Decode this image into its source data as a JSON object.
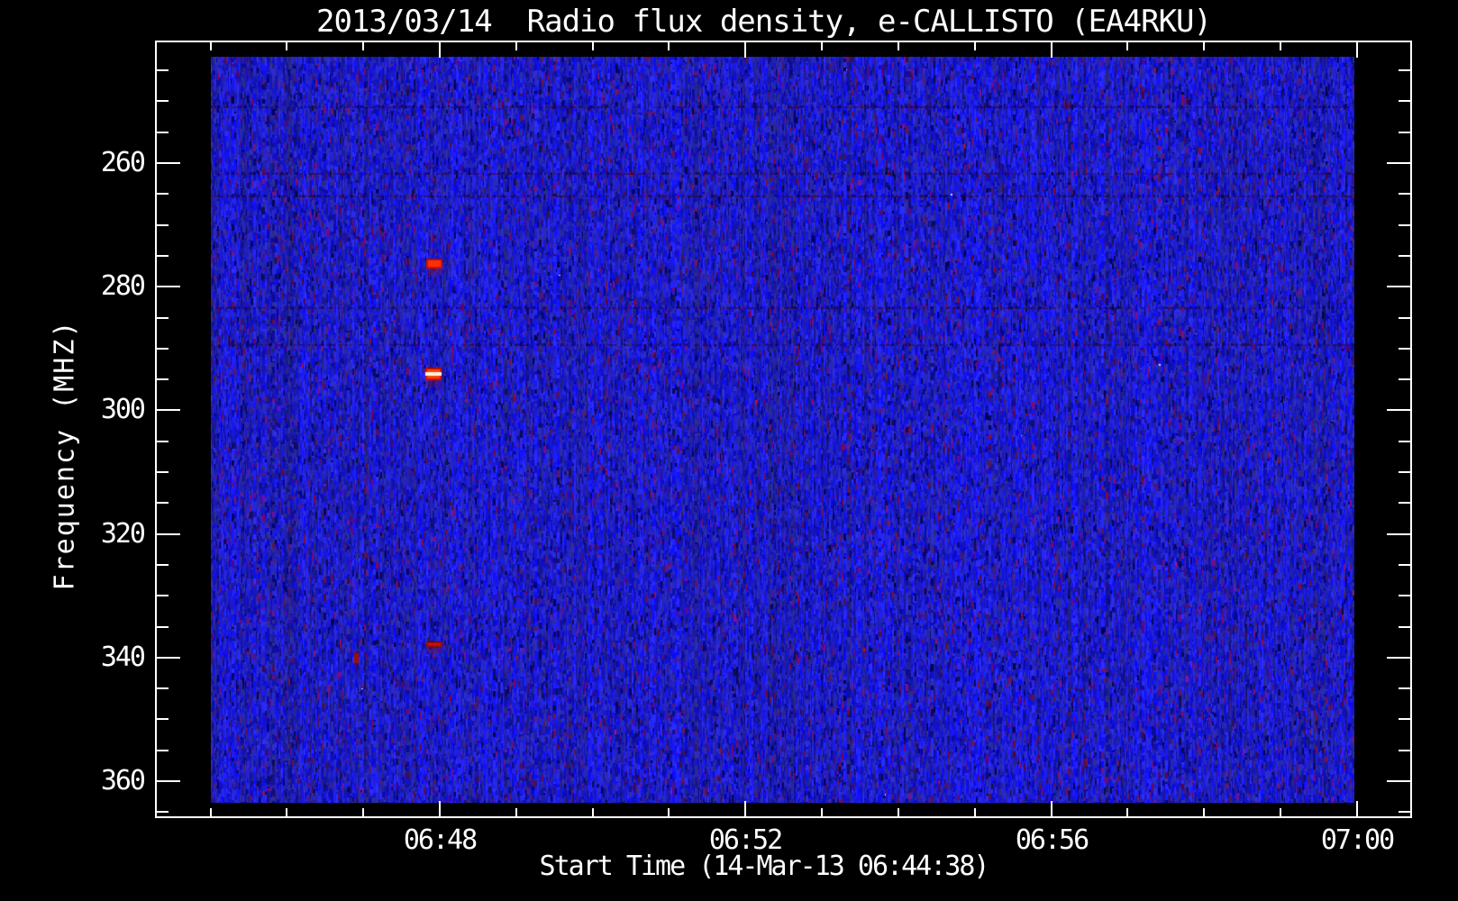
{
  "figure": {
    "background_color": "#000000",
    "foreground_color": "#ffffff"
  },
  "chart_data": {
    "type": "heatmap",
    "title": "2013/03/14  Radio flux density, e-CALLISTO (EA4RKU)",
    "xlabel": "Start Time (14-Mar-13 06:44:38)",
    "ylabel": "Frequency (MHZ)",
    "grid": "off",
    "legend": "none",
    "x_axis": {
      "unit": "time HH:MM (minutes after 06:00)",
      "range_minutes": [
        44.3,
        60.7
      ],
      "major_ticks": [
        {
          "minutes": 48,
          "label": "06:48"
        },
        {
          "minutes": 52,
          "label": "06:52"
        },
        {
          "minutes": 56,
          "label": "06:56"
        },
        {
          "minutes": 60,
          "label": "07:00"
        }
      ],
      "minor_tick_step_minutes": 1,
      "minor_tick_minutes": [
        45,
        46,
        47,
        49,
        50,
        51,
        53,
        54,
        55,
        57,
        58,
        59
      ]
    },
    "y_axis": {
      "unit": "MHz",
      "direction": "increasing-downward",
      "range_mhz": [
        240.2,
        366.1
      ],
      "major_ticks_mhz": [
        260,
        280,
        300,
        320,
        340,
        360
      ],
      "minor_tick_step_mhz": 5,
      "minor_ticks_mhz": [
        245,
        250,
        255,
        265,
        270,
        275,
        285,
        290,
        295,
        305,
        310,
        315,
        325,
        330,
        335,
        345,
        350,
        355,
        365
      ]
    },
    "image_extent": {
      "time_minutes": [
        45.0,
        59.95
      ],
      "freq_mhz": [
        242.8,
        363.5
      ]
    },
    "noise_background": {
      "description": "blue vertical-streak spectrogram noise",
      "base_color": "#2222cc",
      "bright_color": "#3030ff",
      "dark_streak_color": "#000d66",
      "speckle_color": "#7a1a50"
    },
    "rfi_lines_mhz": [
      250.8,
      261.6,
      265.2,
      283.3,
      289.3
    ],
    "bursts": [
      {
        "time_minutes": [
          47.82,
          48.04
        ],
        "freq_mhz": [
          275.5,
          277.1
        ],
        "intensity": "strong",
        "has_white_core": false
      },
      {
        "time_minutes": [
          47.81,
          48.02
        ],
        "freq_mhz": [
          293.1,
          295.1
        ],
        "intensity": "saturated",
        "has_white_core": true,
        "white_core_freq_mhz": [
          293.8,
          294.4
        ]
      },
      {
        "time_minutes": [
          47.82,
          48.04
        ],
        "freq_mhz": [
          337.4,
          338.3
        ],
        "intensity": "moderate",
        "has_white_core": false
      },
      {
        "time_minutes": [
          46.88,
          46.94
        ],
        "freq_mhz": [
          339.2,
          340.9
        ],
        "intensity": "moderate",
        "has_white_core": false
      }
    ],
    "burst_color": "#cc1000",
    "white_core_color": "#fff6e0"
  }
}
